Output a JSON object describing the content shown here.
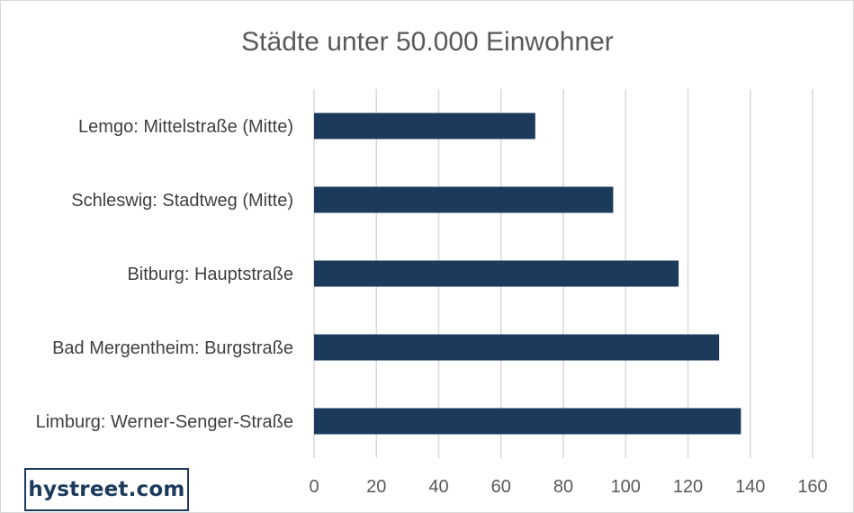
{
  "chart_data": {
    "type": "bar",
    "orientation": "horizontal",
    "title": "Städte unter 50.000 Einwohner",
    "categories": [
      "Lemgo: Mittelstraße (Mitte)",
      "Schleswig: Stadtweg (Mitte)",
      "Bitburg: Hauptstraße",
      "Bad Mergentheim: Burgstraße",
      "Limburg: Werner-Senger-Straße"
    ],
    "values": [
      71,
      96,
      117,
      130,
      137
    ],
    "xlim": [
      0,
      160
    ],
    "xticks": [
      "0",
      "20",
      "40",
      "60",
      "80",
      "100",
      "120",
      "140",
      "160"
    ],
    "grid": true,
    "legend": "none",
    "bar_color": "#1b3a5c",
    "grid_color": "#d9d9d9"
  },
  "branding": {
    "logo_text": "hystreet.com"
  }
}
